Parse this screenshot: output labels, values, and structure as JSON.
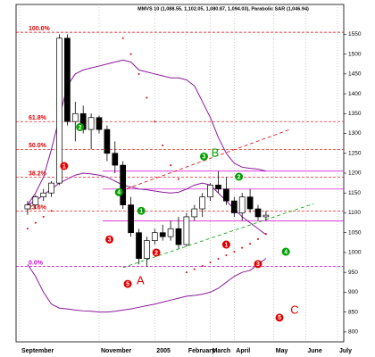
{
  "chart_data": {
    "type": "candlestick",
    "title": "MMVS 10 (1,088.55, 1,102.05, 1,080.87, 1,094.03), Parabolic SAR (1,046.94)",
    "categories": [
      "September",
      null,
      null,
      null,
      null,
      null,
      null,
      null,
      null,
      null,
      "November",
      null,
      null,
      null,
      null,
      null,
      null,
      "2005",
      null,
      null,
      null,
      "February",
      null,
      null,
      "March",
      null,
      null,
      "April",
      null,
      null,
      null,
      null,
      "May",
      null,
      null,
      null,
      "June",
      null,
      null,
      null,
      "July",
      null
    ],
    "open": [
      null,
      1110,
      1120,
      1140,
      1150,
      1175,
      1540,
      1330,
      1350,
      1310,
      1340,
      1310,
      1250,
      1220,
      1120,
      1050,
      985,
      1030,
      1050,
      1040,
      1060,
      1020,
      1090,
      1110,
      1140,
      1170,
      1160,
      1130,
      1100,
      1140,
      1110,
      1090,
      null,
      null,
      null,
      null,
      null,
      null,
      null,
      null,
      null,
      null
    ],
    "high": [
      null,
      1130,
      1145,
      1160,
      1180,
      1550,
      1550,
      1380,
      1370,
      1350,
      1345,
      1320,
      1280,
      1230,
      1140,
      1060,
      1040,
      1060,
      1070,
      1080,
      1090,
      1100,
      1120,
      1150,
      1175,
      1205,
      1190,
      1140,
      1150,
      1160,
      1120,
      1105,
      null,
      null,
      null,
      null,
      null,
      null,
      null,
      null,
      null,
      null
    ],
    "low": [
      null,
      1095,
      1110,
      1130,
      1140,
      1170,
      1320,
      1280,
      1300,
      1260,
      1300,
      1230,
      1200,
      1110,
      1040,
      970,
      965,
      1020,
      1030,
      1030,
      1010,
      1015,
      1080,
      1090,
      1130,
      1150,
      1120,
      1090,
      1080,
      1100,
      1080,
      1080,
      null,
      null,
      null,
      null,
      null,
      null,
      null,
      null,
      null,
      null
    ],
    "close": [
      null,
      1120,
      1140,
      1150,
      1175,
      1540,
      1330,
      1350,
      1310,
      1340,
      1310,
      1250,
      1220,
      1120,
      1050,
      985,
      1030,
      1050,
      1040,
      1060,
      1020,
      1090,
      1110,
      1140,
      1170,
      1160,
      1130,
      1100,
      1140,
      1110,
      1090,
      1094.03,
      null,
      null,
      null,
      null,
      null,
      null,
      null,
      null,
      null,
      null
    ],
    "bands": [
      {
        "color": "#8b1a9b",
        "values": [
          null,
          1120,
          1150,
          1190,
          1260,
          1340,
          1420,
          1450,
          1460,
          1465,
          1470,
          1475,
          1480,
          1485,
          1480,
          1460,
          1455,
          1450,
          1445,
          1440,
          1440,
          1435,
          1420,
          1380,
          1340,
          1290,
          1250,
          1225,
          1215,
          1212,
          1210,
          1205,
          null,
          null,
          null,
          null,
          null,
          null,
          null,
          null,
          null,
          null
        ]
      },
      {
        "color": "#8b1a9b",
        "values": [
          null,
          1120,
          1130,
          1145,
          1160,
          1175,
          1185,
          1195,
          1200,
          1198,
          1195,
          1190,
          1180,
          1170,
          1165,
          1160,
          1158,
          1155,
          1152,
          1150,
          1152,
          1160,
          1170,
          1175,
          1170,
          1150,
          1130,
          1110,
          1090,
          1075,
          1060,
          1045,
          null,
          null,
          null,
          null,
          null,
          null,
          null,
          null,
          null,
          null
        ]
      },
      {
        "color": "#8b1a9b",
        "values": [
          null,
          970,
          940,
          900,
          870,
          860,
          858,
          855,
          853,
          852,
          850,
          850,
          852,
          855,
          858,
          862,
          866,
          870,
          875,
          880,
          885,
          890,
          892,
          895,
          900,
          910,
          925,
          940,
          950,
          955,
          970,
          985,
          null,
          null,
          null,
          null,
          null,
          null,
          null,
          null,
          null,
          null
        ]
      }
    ],
    "sar": {
      "color": "#e00000",
      "values": [
        null,
        1060,
        1075,
        1090,
        1105,
        null,
        null,
        null,
        null,
        null,
        null,
        null,
        null,
        1540,
        1500,
        1450,
        1390,
        1330,
        1270,
        1220,
        1185,
        950,
        958,
        966,
        975,
        984,
        993,
        1002,
        1012,
        1022,
        1034,
        1046.94,
        null,
        null,
        null,
        null,
        null,
        null,
        null,
        null,
        null,
        null
      ]
    },
    "fib_levels": [
      {
        "label": "100.0%",
        "value": 1555,
        "color": "#e00000"
      },
      {
        "label": "61.8%",
        "value": 1330,
        "color": "#e00000"
      },
      {
        "label": "50.0%",
        "value": 1260,
        "color": "#e00000"
      },
      {
        "label": "38.2%",
        "value": 1190,
        "color": "#e00000"
      },
      {
        "label": "23.6%",
        "value": 1104,
        "color": "#e00000"
      },
      {
        "label": "0.0%",
        "value": 965,
        "color": "#d000d0"
      }
    ],
    "levels": [
      {
        "value": 1205,
        "color": "#d000d0"
      },
      {
        "value": 1160,
        "color": "#d000d0"
      },
      {
        "value": 1080,
        "color": "#d000d0"
      }
    ],
    "trendlines": [
      {
        "color": "#e00000",
        "x": [
          12,
          34
        ],
        "y": [
          1150,
          1310
        ]
      },
      {
        "color": "#00a000",
        "x": [
          13,
          37
        ],
        "y": [
          962,
          1123
        ]
      }
    ],
    "annotations": [
      {
        "text": "2",
        "x": 7.6,
        "y": 1316,
        "color": "#00a000",
        "circled": true
      },
      {
        "text": "4",
        "x": 12.5,
        "y": 1152,
        "color": "#00a000",
        "circled": true
      },
      {
        "text": "1",
        "x": 15.3,
        "y": 1105,
        "color": "#00a000",
        "circled": true
      },
      {
        "text": "3",
        "x": 23.2,
        "y": 1242,
        "color": "#00a000",
        "circled": true
      },
      {
        "text": "B",
        "x": 24.6,
        "y": 1249,
        "color": "#00a000",
        "circled": false
      },
      {
        "text": "2",
        "x": 27.6,
        "y": 1191,
        "color": "#00a000",
        "circled": true
      },
      {
        "text": "4",
        "x": 33.5,
        "y": 1002,
        "color": "#00a000",
        "circled": true
      },
      {
        "text": "1",
        "x": 5.6,
        "y": 1218,
        "color": "#e00000",
        "circled": true
      },
      {
        "text": "3",
        "x": 11.3,
        "y": 1033,
        "color": "#e00000",
        "circled": true
      },
      {
        "text": "2",
        "x": 17.2,
        "y": 1000,
        "color": "#e00000",
        "circled": true
      },
      {
        "text": "5",
        "x": 13.6,
        "y": 921,
        "color": "#e00000",
        "circled": true
      },
      {
        "text": "A",
        "x": 15.2,
        "y": 928,
        "color": "#e00000",
        "circled": false
      },
      {
        "text": "1",
        "x": 26,
        "y": 1020,
        "color": "#e00000",
        "circled": true
      },
      {
        "text": "3",
        "x": 30,
        "y": 971,
        "color": "#e00000",
        "circled": true
      },
      {
        "text": "5",
        "x": 32.7,
        "y": 836,
        "color": "#e00000",
        "circled": true
      },
      {
        "text": "C",
        "x": 34.6,
        "y": 854,
        "color": "#e00000",
        "circled": false
      }
    ],
    "ylim": [
      775,
      1625
    ],
    "yticks": [
      800,
      850,
      900,
      950,
      1000,
      1050,
      1100,
      1150,
      1200,
      1250,
      1300,
      1350,
      1400,
      1450,
      1500,
      1550
    ]
  }
}
